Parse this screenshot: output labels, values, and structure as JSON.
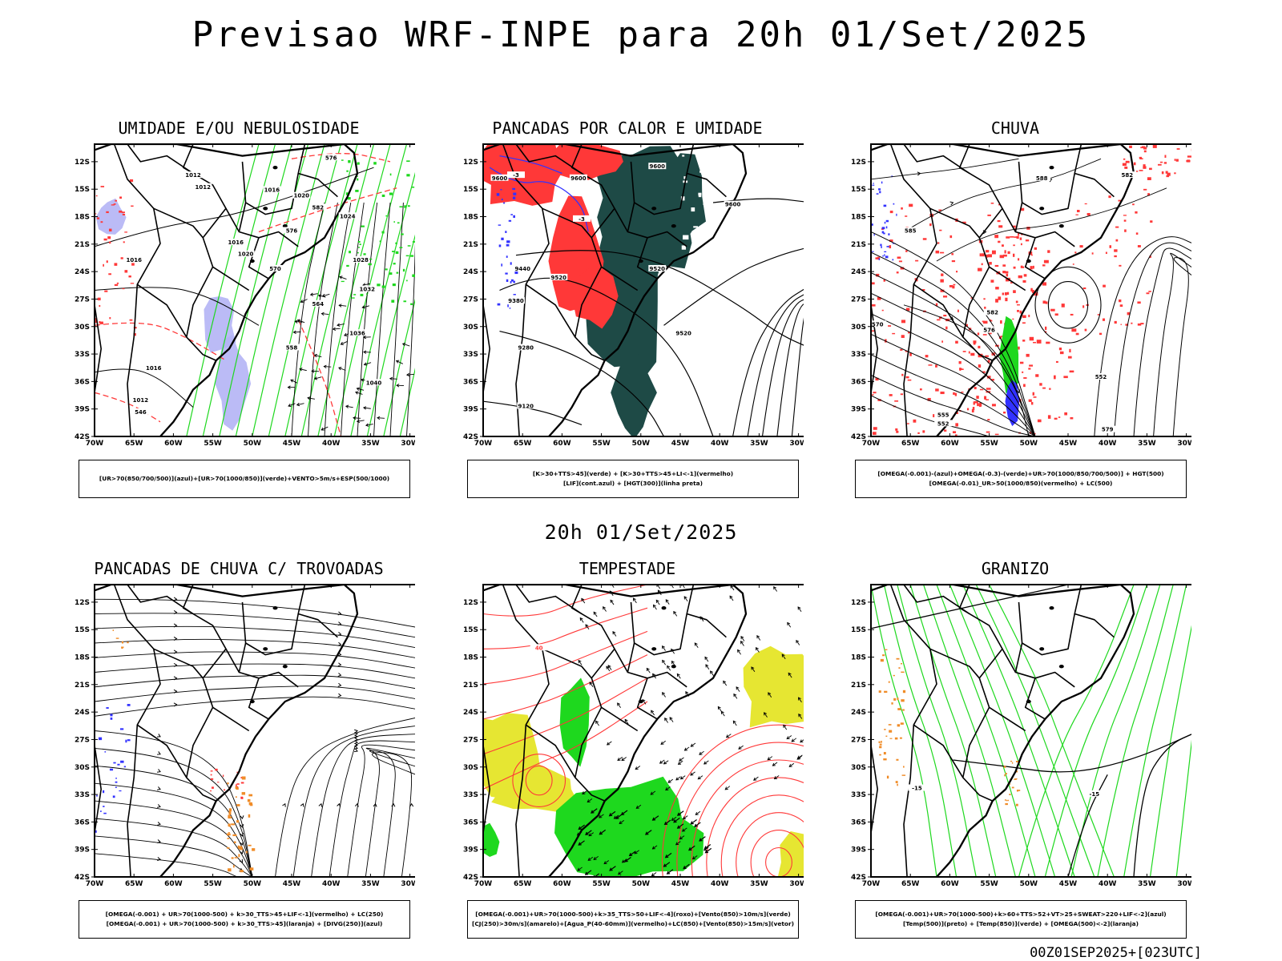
{
  "title": "Previsao WRF-INPE  para 20h 01/Set/2025",
  "middle_title": "20h 01/Set/2025",
  "footer": "00Z01SEP2025+[023UTC]",
  "axes": {
    "lat_labels": [
      "12S",
      "15S",
      "18S",
      "21S",
      "24S",
      "27S",
      "30S",
      "33S",
      "36S",
      "39S",
      "42S"
    ],
    "lon_labels": [
      "70W",
      "65W",
      "60W",
      "55W",
      "50W",
      "45W",
      "40W",
      "35W",
      "30W"
    ]
  },
  "colors": {
    "red": "#ff3838",
    "green": "#1ed81e",
    "blue": "#3232ff",
    "lavender": "#b4b4f5",
    "dark_teal": "#1e4a46",
    "yellow": "#e6e632",
    "orange": "#f08c28"
  },
  "panels": [
    {
      "title": "UMIDADE E/OU NEBULOSIDADE",
      "legend": [
        "[UR>70(850/700/500)](azul)+[UR>70(1000/850)](verde)+VENTO>5m/s+ESP(500/1000)"
      ],
      "contour_labels": [
        "1012",
        "1012",
        "1016",
        "1020",
        "1024",
        "1028",
        "1032",
        "1036",
        "1040",
        "1016",
        "1020",
        "1016",
        "1012",
        "1016",
        "546",
        "558",
        "564",
        "570",
        "576",
        "582",
        "576"
      ]
    },
    {
      "title": "PANCADAS POR CALOR E UMIDADE",
      "legend": [
        "[K>30+TTS>45](verde)  +  [K>30+TTS>45+LI<-1](vermelho)",
        "[LIF](cont.azul)  +  [HGT(300)](linha preta)"
      ],
      "contour_labels": [
        "9600",
        "9600",
        "9600",
        "9600",
        "9440",
        "9520",
        "9380",
        "9520",
        "9520",
        "9280",
        "9120",
        "-3",
        "-3"
      ]
    },
    {
      "title": "CHUVA",
      "legend": [
        "[OMEGA(-0.001)-(azul)+OMEGA(-0.3)-(verde)+UR>70(1000/850/700/500)]  +  HGT(500)",
        "[OMEGA(-0.01)_UR>50(1000/850)(vermelho)  +  LC(500)"
      ],
      "contour_labels": [
        "588",
        "582",
        "570",
        "585",
        "582",
        "576",
        "552",
        "555",
        "579",
        "552"
      ]
    },
    {
      "title": "PANCADAS DE CHUVA C/ TROVOADAS",
      "legend": [
        "[OMEGA(-0.001)  +  UR>70(1000-500)  +  k>30_TTS>45+LIF<-1](vermelho)  +  LC(250)",
        "[OMEGA(-0.001)  +  UR>70(1000-500)  +  k>30_TTS>45](laranja)  +  [DIVG(250)](azul)"
      ],
      "contour_labels": []
    },
    {
      "title": "TEMPESTADE",
      "legend": [
        "[OMEGA(-0.001)+UR>70(1000-500)+k>35_TTS>50+LIF<-4](roxo)+[Vento(850)>10m/s](verde)",
        "[CJ(250)>30m/s](amarelo)+[Agua_P(40-60mm)](vermelho)+LC(850)+[Vento(850)>15m/s](vetor)"
      ],
      "contour_labels": [
        "40"
      ]
    },
    {
      "title": "GRANIZO",
      "legend": [
        "[OMEGA(-0.001)+UR>70(1000-500)+k>60+TTS>52+VT>25+SWEAT>220+LIF<-2](azul)",
        "[Temp(500)](preto)  +  [Temp(850)](verde)  +  [OMEGA(500)<-2](laranja)"
      ],
      "contour_labels": [
        "-15",
        "-15"
      ]
    }
  ]
}
